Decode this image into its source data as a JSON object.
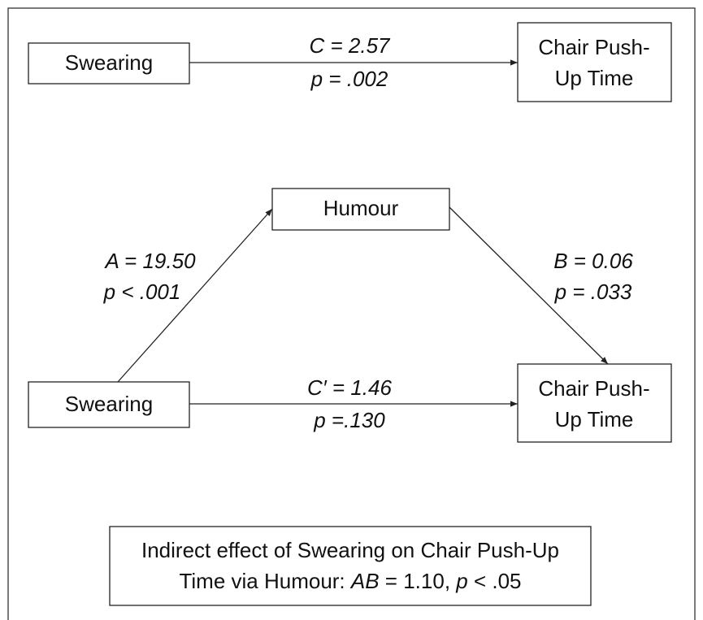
{
  "total_effect": {
    "source": "Swearing",
    "target": [
      "Chair Push-",
      "Up Time"
    ],
    "path_c": {
      "coefficient": "C = 2.57",
      "p": "p = .002"
    }
  },
  "mediation_model": {
    "source": "Swearing",
    "mediator": "Humour",
    "target": [
      "Chair Push-",
      "Up Time"
    ],
    "path_a": {
      "coefficient": "A = 19.50",
      "p": "p < .001"
    },
    "path_b": {
      "coefficient": "B = 0.06",
      "p": "p = .033"
    },
    "path_c_prime": {
      "coefficient": "C′ = 1.46",
      "p": "p =.130"
    }
  },
  "indirect_effect": {
    "line1": "Indirect effect of Swearing on Chair Push-Up",
    "line2": [
      "Time via Humour: ",
      "AB",
      " = 1.10, ",
      "p",
      " < .05"
    ]
  }
}
